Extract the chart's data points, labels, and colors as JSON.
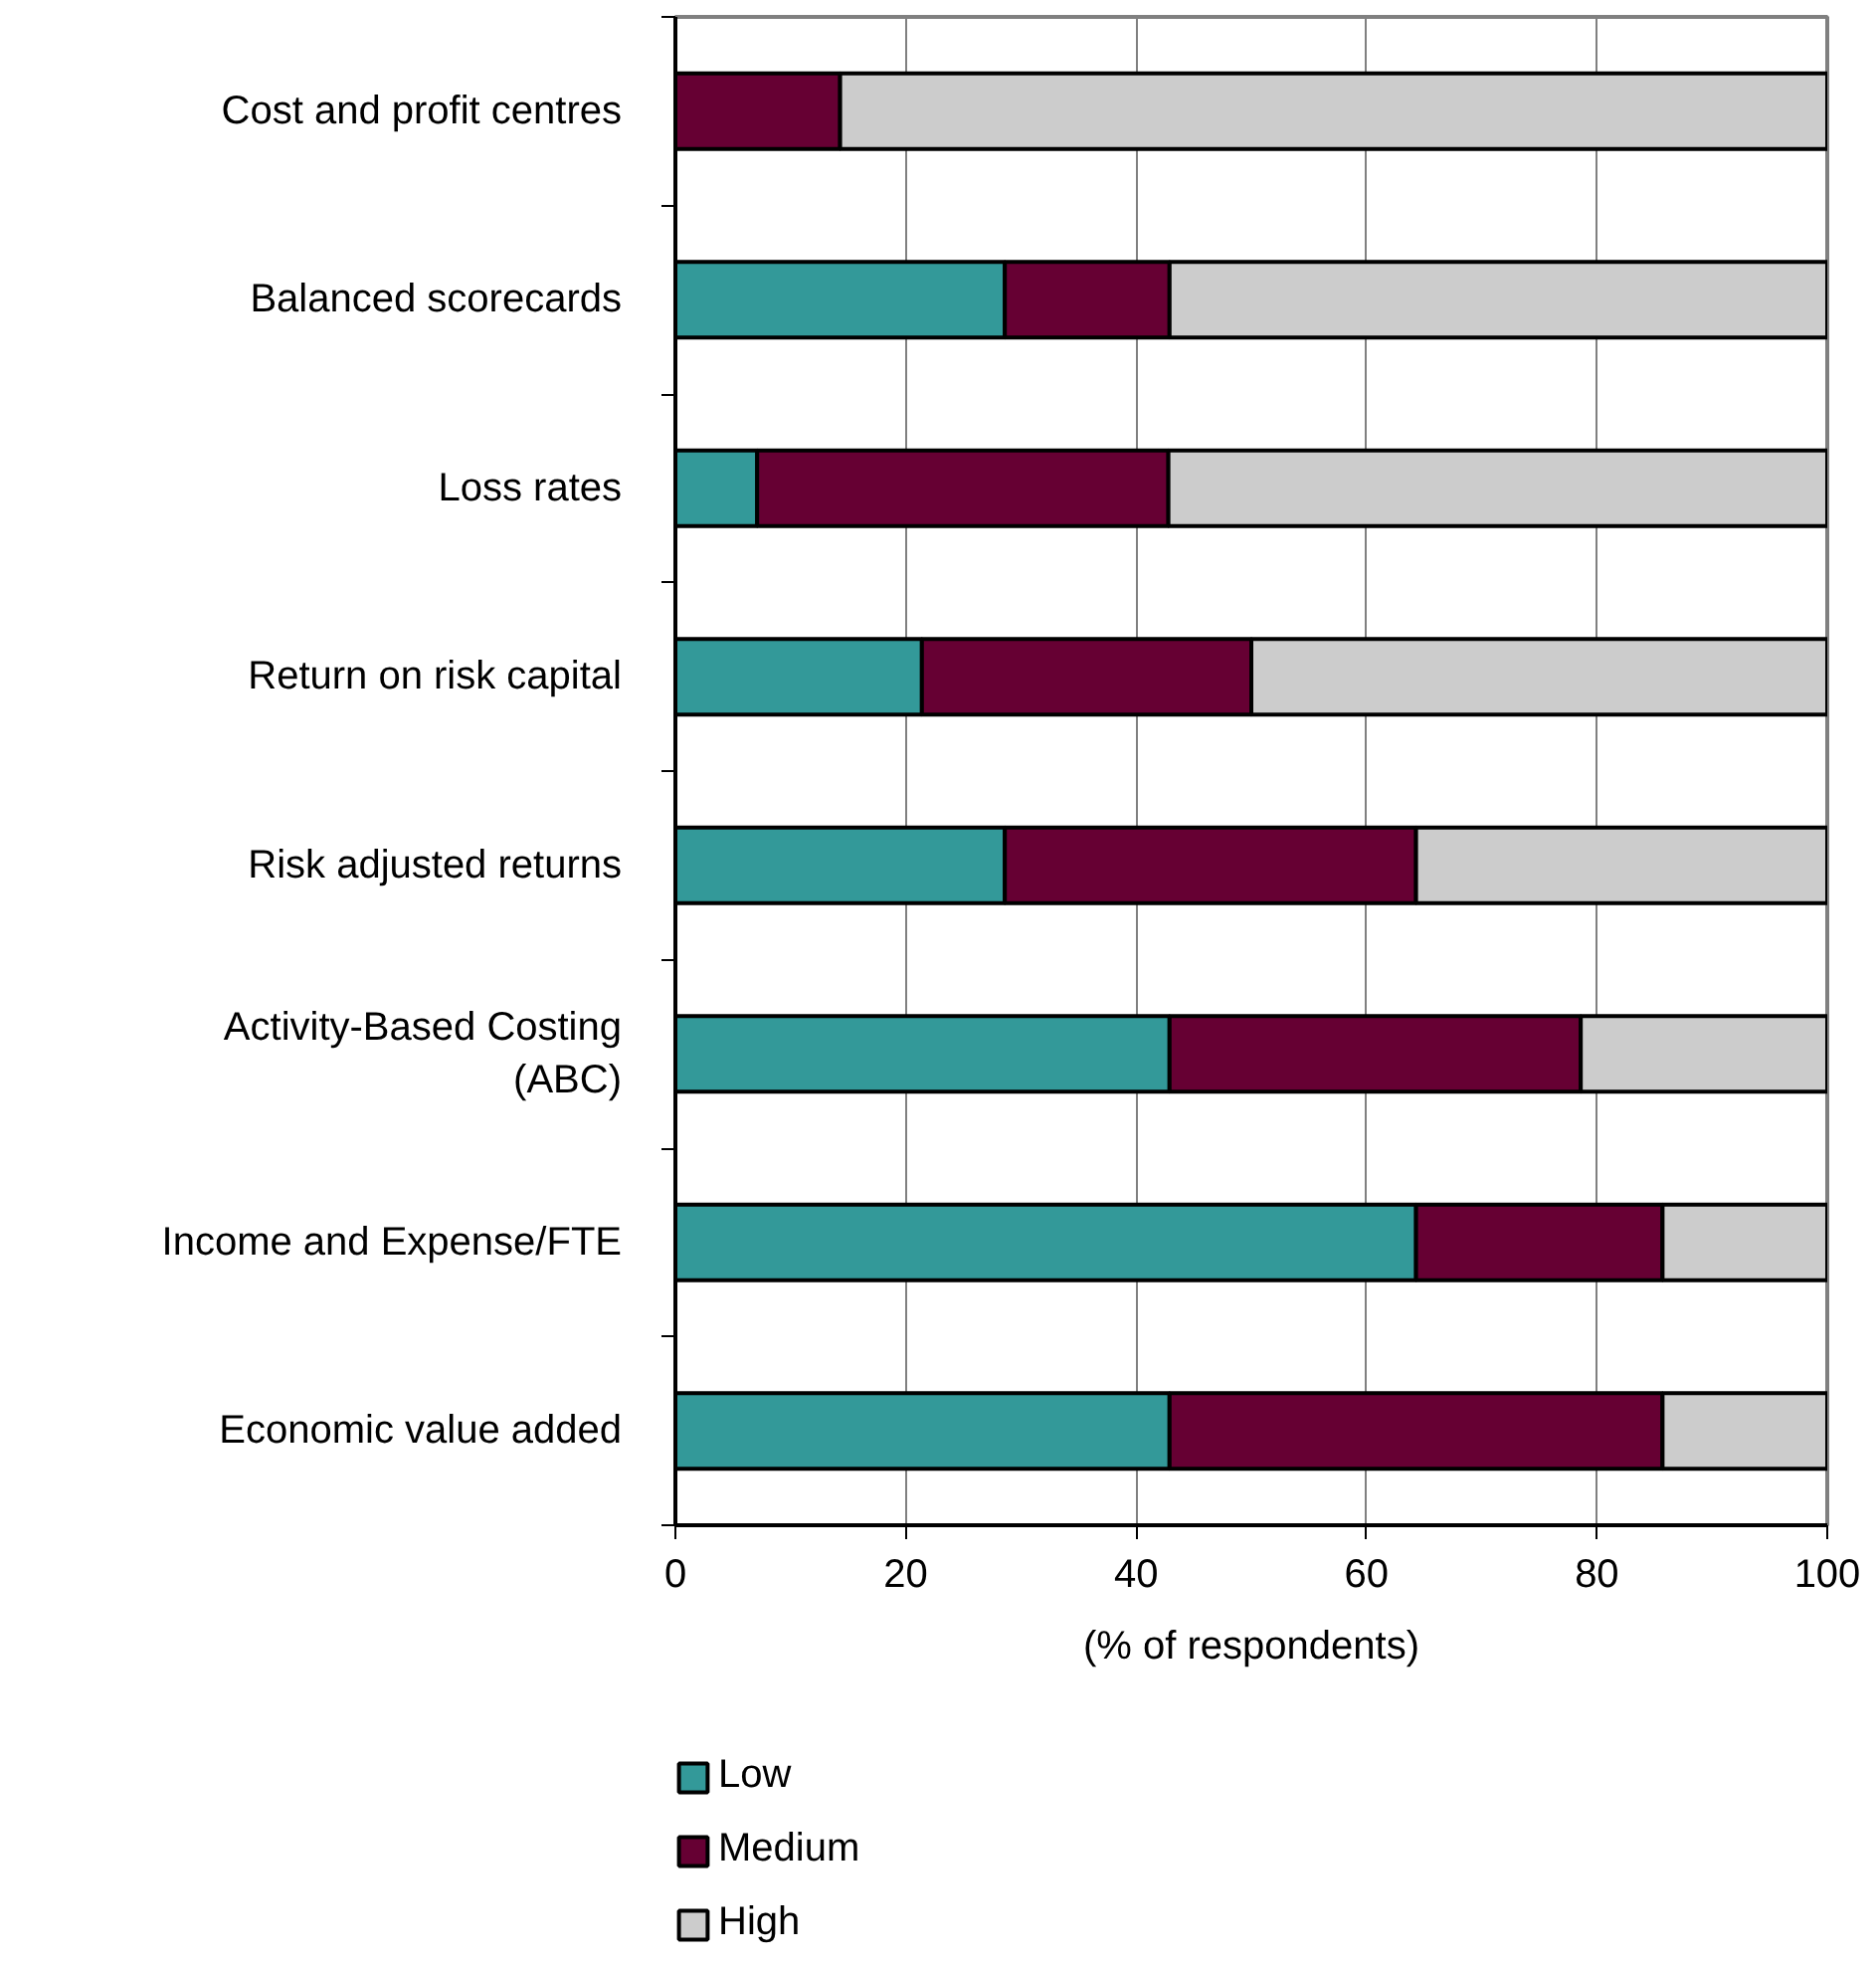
{
  "chart_data": {
    "type": "bar",
    "orientation": "horizontal",
    "stacked": true,
    "categories": [
      "Cost and profit centres",
      "Balanced scorecards",
      "Loss rates",
      "Return on risk capital",
      "Risk adjusted returns",
      "Activity-Based Costing (ABC)",
      "Income and Expense/FTE",
      "Economic value added"
    ],
    "series": [
      {
        "name": "Low",
        "color": "#339999",
        "values": [
          0,
          28.6,
          7.1,
          21.4,
          28.6,
          42.9,
          64.3,
          42.9
        ]
      },
      {
        "name": "Medium",
        "color": "#660033",
        "values": [
          14.3,
          14.3,
          35.7,
          28.6,
          35.7,
          35.7,
          21.4,
          42.8
        ]
      },
      {
        "name": "High",
        "color": "#cccccc",
        "values": [
          85.7,
          57.1,
          57.2,
          50,
          35.7,
          21.4,
          14.3,
          14.3
        ]
      }
    ],
    "xlabel": "(% of respondents)",
    "xlim": [
      0,
      100
    ],
    "xticks": [
      0,
      20,
      40,
      60,
      80,
      100
    ],
    "grid": "x",
    "legend": "bottom left"
  }
}
